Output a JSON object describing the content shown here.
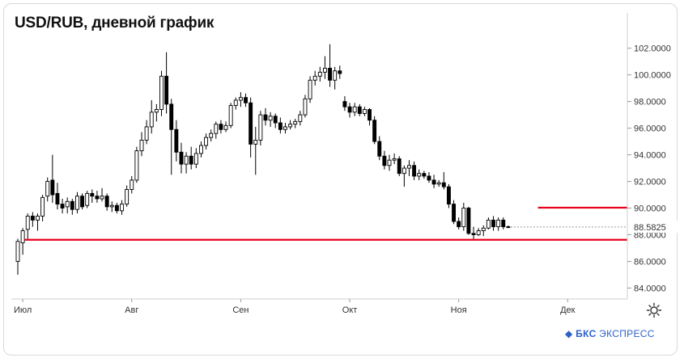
{
  "header": {
    "title": "USD/RUB, дневной график"
  },
  "brand": {
    "mark": "◆",
    "name_bold": "БКС",
    "name_rest": " ЭКСПРЕСС"
  },
  "colors": {
    "up": "#ffffff",
    "down": "#000000",
    "level": "#e8001c",
    "grid": "#e6e6e6"
  },
  "chart_data": {
    "type": "candlestick",
    "title": "USD/RUB, дневной график",
    "x_labels": [
      "Июл",
      "Авг",
      "Сен",
      "Окт",
      "Ноя",
      "Дек"
    ],
    "x_label_index": [
      1,
      23,
      45,
      67,
      89,
      111
    ],
    "y_ticks": [
      "102.0000",
      "100.0000",
      "98.0000",
      "96.0000",
      "94.0000",
      "92.0000",
      "90.0000",
      "88.0000",
      "86.0000",
      "84.0000"
    ],
    "y_tick_values": [
      102,
      100,
      98,
      96,
      94,
      92,
      90,
      88,
      86,
      84
    ],
    "ylim": [
      83.3,
      103.8
    ],
    "current_price": "88.5825",
    "current_value": 88.58,
    "support_level": 87.62,
    "resistance_level": 90.03,
    "resistance_start_index": 105,
    "candles": [
      [
        86.0,
        87.7,
        85.0,
        87.5
      ],
      [
        87.4,
        88.5,
        86.5,
        88.3
      ],
      [
        88.4,
        89.6,
        87.6,
        89.4
      ],
      [
        89.4,
        89.7,
        88.6,
        89.1
      ],
      [
        89.1,
        89.6,
        88.3,
        89.4
      ],
      [
        89.4,
        91.0,
        89.0,
        90.8
      ],
      [
        90.9,
        92.3,
        90.5,
        92.0
      ],
      [
        92.1,
        94.0,
        90.4,
        91.0
      ],
      [
        91.1,
        91.9,
        89.9,
        90.3
      ],
      [
        90.3,
        90.7,
        89.6,
        90.0
      ],
      [
        90.1,
        90.8,
        89.6,
        90.5
      ],
      [
        90.5,
        90.7,
        89.5,
        89.9
      ],
      [
        89.9,
        91.2,
        89.6,
        90.9
      ],
      [
        90.9,
        91.1,
        89.9,
        90.1
      ],
      [
        90.2,
        91.3,
        90.0,
        91.1
      ],
      [
        91.1,
        91.4,
        90.4,
        90.9
      ],
      [
        90.9,
        91.3,
        90.4,
        90.7
      ],
      [
        90.7,
        91.5,
        90.5,
        90.9
      ],
      [
        90.9,
        91.1,
        89.8,
        90.1
      ],
      [
        90.1,
        90.5,
        89.7,
        90.2
      ],
      [
        90.2,
        90.4,
        89.6,
        89.8
      ],
      [
        89.8,
        90.6,
        89.5,
        90.3
      ],
      [
        90.3,
        91.7,
        90.1,
        91.4
      ],
      [
        91.4,
        92.4,
        91.1,
        92.1
      ],
      [
        92.1,
        94.6,
        91.9,
        94.3
      ],
      [
        94.3,
        95.7,
        93.9,
        95.1
      ],
      [
        95.1,
        96.6,
        94.8,
        96.1
      ],
      [
        96.1,
        98.1,
        95.6,
        97.2
      ],
      [
        97.2,
        97.8,
        96.5,
        97.4
      ],
      [
        97.4,
        100.3,
        96.9,
        99.9
      ],
      [
        99.9,
        101.7,
        97.1,
        97.8
      ],
      [
        97.8,
        98.2,
        92.5,
        95.9
      ],
      [
        95.9,
        96.6,
        93.5,
        94.2
      ],
      [
        94.2,
        94.9,
        92.6,
        93.3
      ],
      [
        93.3,
        94.2,
        92.6,
        93.9
      ],
      [
        93.9,
        94.6,
        92.9,
        93.3
      ],
      [
        93.3,
        94.5,
        93.0,
        94.1
      ],
      [
        94.1,
        95.0,
        93.8,
        94.7
      ],
      [
        94.7,
        95.6,
        94.4,
        95.3
      ],
      [
        95.3,
        95.9,
        95.0,
        95.6
      ],
      [
        95.6,
        96.5,
        95.2,
        96.3
      ],
      [
        96.3,
        96.6,
        95.6,
        95.9
      ],
      [
        95.9,
        96.5,
        95.7,
        96.2
      ],
      [
        96.2,
        97.9,
        96.0,
        97.7
      ],
      [
        97.7,
        98.3,
        97.4,
        98.1
      ],
      [
        98.1,
        98.7,
        97.6,
        98.3
      ],
      [
        98.3,
        98.6,
        97.6,
        97.9
      ],
      [
        97.9,
        98.3,
        93.8,
        94.8
      ],
      [
        94.8,
        96.1,
        92.5,
        95.1
      ],
      [
        95.1,
        97.3,
        94.7,
        97.0
      ],
      [
        97.0,
        97.5,
        96.2,
        96.6
      ],
      [
        96.6,
        97.2,
        96.1,
        96.9
      ],
      [
        96.9,
        97.1,
        96.0,
        96.4
      ],
      [
        96.4,
        96.8,
        95.6,
        95.9
      ],
      [
        95.9,
        96.4,
        95.6,
        96.1
      ],
      [
        96.1,
        96.6,
        95.9,
        96.3
      ],
      [
        96.3,
        96.7,
        96.0,
        96.5
      ],
      [
        96.5,
        97.3,
        96.2,
        97.0
      ],
      [
        97.0,
        98.5,
        96.8,
        98.2
      ],
      [
        98.2,
        99.9,
        97.9,
        99.6
      ],
      [
        99.6,
        100.3,
        99.2,
        99.9
      ],
      [
        99.9,
        100.6,
        99.5,
        100.2
      ],
      [
        100.2,
        101.4,
        99.7,
        100.5
      ],
      [
        100.5,
        102.3,
        99.1,
        99.6
      ],
      [
        99.6,
        100.6,
        98.9,
        100.3
      ],
      [
        100.3,
        100.7,
        99.7,
        100.1
      ],
      [
        98.0,
        98.4,
        97.3,
        97.6
      ],
      [
        97.6,
        97.9,
        96.8,
        97.2
      ],
      [
        97.2,
        97.9,
        96.9,
        97.6
      ],
      [
        97.6,
        97.8,
        96.9,
        97.1
      ],
      [
        97.1,
        97.6,
        96.9,
        97.4
      ],
      [
        97.4,
        97.5,
        96.2,
        96.6
      ],
      [
        96.6,
        96.9,
        94.8,
        95.0
      ],
      [
        95.0,
        95.4,
        93.6,
        93.9
      ],
      [
        93.9,
        94.3,
        92.9,
        93.2
      ],
      [
        93.2,
        94.0,
        92.8,
        93.6
      ],
      [
        93.6,
        94.1,
        93.3,
        93.7
      ],
      [
        93.7,
        93.9,
        92.4,
        92.6
      ],
      [
        92.6,
        93.2,
        91.6,
        93.0
      ],
      [
        93.0,
        93.6,
        92.4,
        93.2
      ],
      [
        93.2,
        93.5,
        92.1,
        92.4
      ],
      [
        92.4,
        92.9,
        92.1,
        92.6
      ],
      [
        92.6,
        92.8,
        92.2,
        92.4
      ],
      [
        92.4,
        92.7,
        91.9,
        92.1
      ],
      [
        92.1,
        92.5,
        91.5,
        91.8
      ],
      [
        91.8,
        92.1,
        91.6,
        91.9
      ],
      [
        91.9,
        92.7,
        91.4,
        91.6
      ],
      [
        91.6,
        91.8,
        90.0,
        90.3
      ],
      [
        90.3,
        90.6,
        88.8,
        89.0
      ],
      [
        89.0,
        89.3,
        88.4,
        88.6
      ],
      [
        88.6,
        90.4,
        88.3,
        90.0
      ],
      [
        90.0,
        90.1,
        88.0,
        88.1
      ],
      [
        88.1,
        88.6,
        87.6,
        88.0
      ],
      [
        88.0,
        88.5,
        87.9,
        88.3
      ],
      [
        88.3,
        88.7,
        87.9,
        88.5
      ],
      [
        88.5,
        89.3,
        88.4,
        89.1
      ],
      [
        89.1,
        89.4,
        88.3,
        88.6
      ],
      [
        88.6,
        89.3,
        88.3,
        89.1
      ],
      [
        89.1,
        89.3,
        88.4,
        88.6
      ],
      [
        88.6,
        88.7,
        88.5,
        88.58
      ]
    ]
  }
}
